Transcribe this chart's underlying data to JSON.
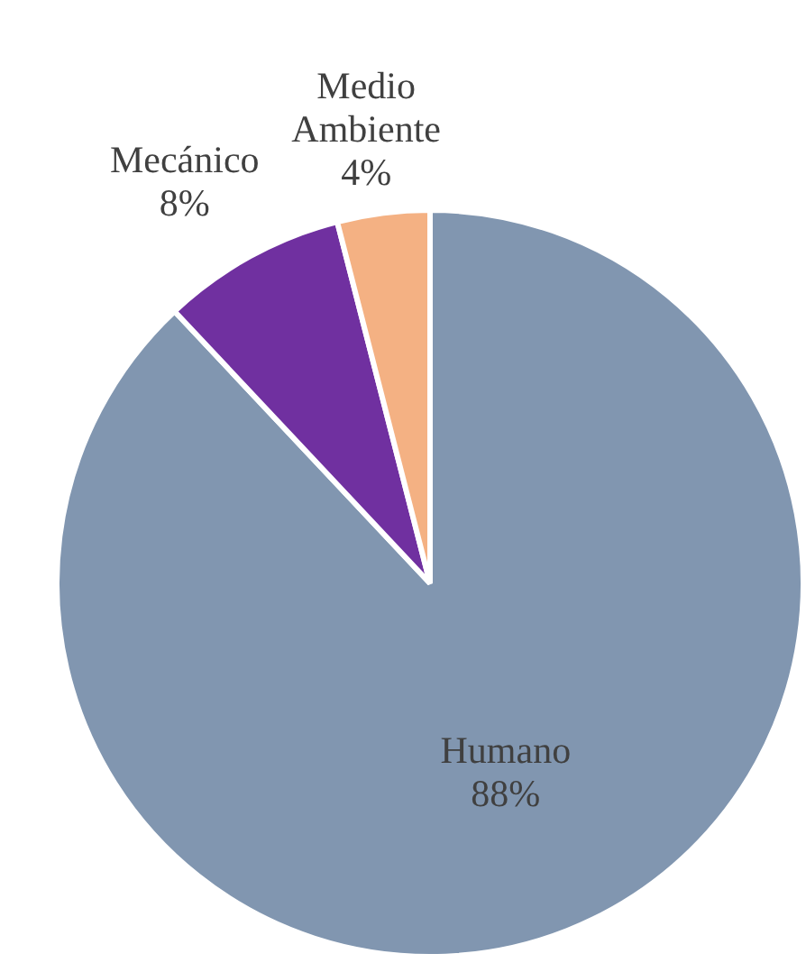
{
  "chart_data": {
    "type": "pie",
    "categories": [
      "Humano",
      "Mecánico",
      "Medio Ambiente"
    ],
    "values": [
      88,
      8,
      4
    ],
    "colors": [
      "#8196b0",
      "#7030a0",
      "#f4b183"
    ],
    "value_labels": [
      "88%",
      "8%",
      "4%"
    ],
    "legend": false
  }
}
